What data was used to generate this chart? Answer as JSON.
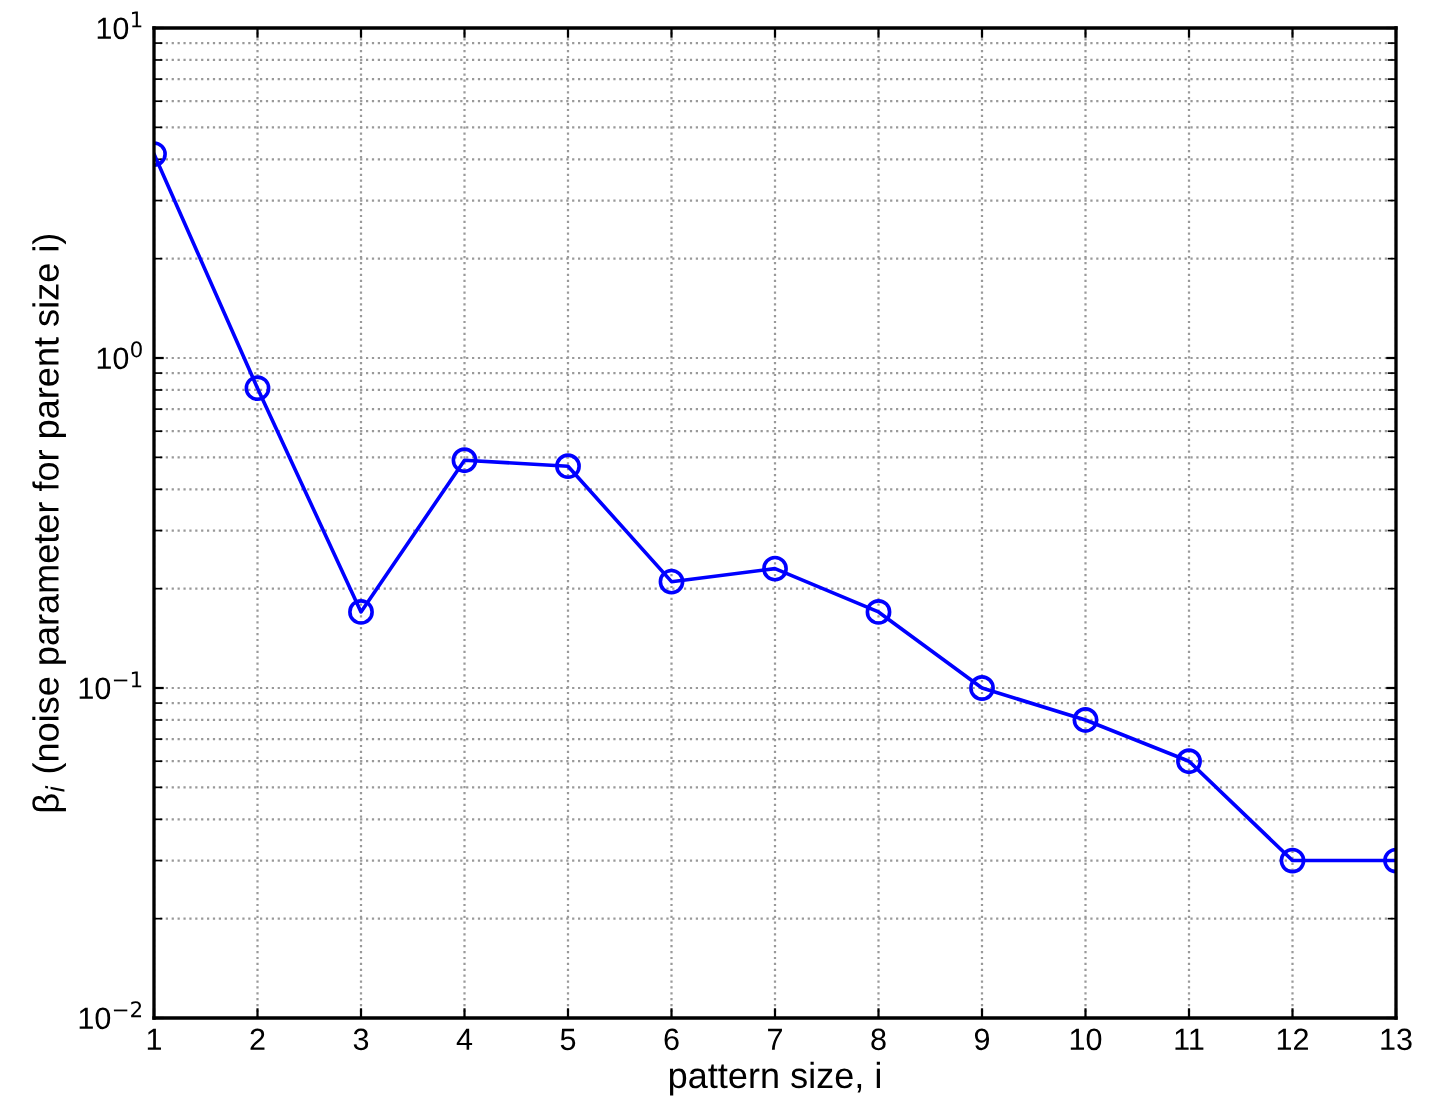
{
  "chart_data": {
    "type": "line",
    "xlabel": "pattern size, i",
    "ylabel": "β$_{i}$ (noise parameter for parent size i)",
    "x": [
      1,
      2,
      3,
      4,
      5,
      6,
      7,
      8,
      9,
      10,
      11,
      12,
      13
    ],
    "series": [
      {
        "color": "#0000ff",
        "values": [
          4.15,
          0.81,
          0.17,
          0.49,
          0.47,
          0.21,
          0.23,
          0.17,
          0.1,
          0.08,
          0.06,
          0.03,
          0.03
        ]
      }
    ],
    "xlim": [
      1,
      13
    ],
    "xticks": [
      1,
      2,
      3,
      4,
      5,
      6,
      7,
      8,
      9,
      10,
      11,
      12,
      13
    ],
    "ylim": [
      0.01,
      10
    ],
    "yticks": [
      {
        "value": 0.01,
        "label": "10$^{−2}$"
      },
      {
        "value": 0.1,
        "label": "10$^{−1}$"
      },
      {
        "value": 1,
        "label": "10$^{0}$"
      },
      {
        "value": 10,
        "label": "10$^{1}$"
      }
    ],
    "log": true,
    "grid": true,
    "marker": "circle",
    "line_style": "solid"
  }
}
